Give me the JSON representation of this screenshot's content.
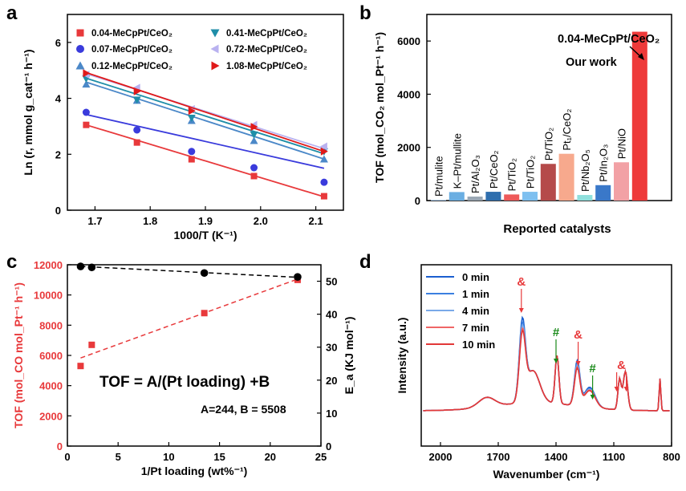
{
  "chart_data": [
    {
      "panel": "a",
      "type": "scatter",
      "xlabel": "1000/T (K⁻¹)",
      "ylabel": "Ln (r, mmol g_cat⁻¹ h⁻¹)",
      "xlim": [
        1.65,
        2.15
      ],
      "ylim": [
        0,
        7
      ],
      "xticks": [
        "1.7",
        "1.8",
        "1.9",
        "2.0",
        "2.1"
      ],
      "yticks": [
        "0",
        "2",
        "4",
        "6"
      ],
      "legend_position": "top",
      "series": [
        {
          "name": "0.04-MeCpPt/CeO₂",
          "marker": "square",
          "color": "#e8393b",
          "x": [
            1.684,
            1.776,
            1.875,
            1.988,
            2.115
          ],
          "y": [
            3.05,
            2.42,
            1.82,
            1.22,
            0.5
          ],
          "fit": [
            3.05,
            0.48
          ]
        },
        {
          "name": "0.07-MeCpPt/CeO₂",
          "marker": "circle",
          "color": "#3a3bdc",
          "x": [
            1.684,
            1.776,
            1.875,
            1.988,
            2.115
          ],
          "y": [
            3.5,
            2.87,
            2.1,
            1.52,
            1.0
          ],
          "fit": [
            3.42,
            1.5
          ]
        },
        {
          "name": "0.12-MeCpPt/CeO₂",
          "marker": "triangle-up",
          "color": "#4b88c8",
          "x": [
            1.684,
            1.776,
            1.875,
            1.988,
            2.115
          ],
          "y": [
            4.5,
            3.92,
            3.2,
            2.48,
            1.82
          ],
          "fit": [
            4.58,
            1.83
          ]
        },
        {
          "name": "0.41-MeCpPt/CeO₂",
          "marker": "triangle-down",
          "color": "#1f8ea8",
          "x": [
            1.684,
            1.776,
            1.875,
            1.988,
            2.115
          ],
          "y": [
            4.7,
            3.95,
            3.3,
            2.7,
            2.1
          ],
          "fit": [
            4.72,
            2.02
          ]
        },
        {
          "name": "0.72-MeCpPt/CeO₂",
          "marker": "triangle-left",
          "color": "#b9b2f0",
          "x": [
            1.684,
            1.776,
            1.875,
            1.988,
            2.115
          ],
          "y": [
            4.85,
            4.38,
            3.62,
            3.05,
            2.28
          ],
          "fit": [
            4.88,
            2.2
          ]
        },
        {
          "name": "1.08-MeCpPt/CeO₂",
          "marker": "triangle-right",
          "color": "#e01a1a",
          "x": [
            1.684,
            1.776,
            1.875,
            1.988,
            2.115
          ],
          "y": [
            4.9,
            4.25,
            3.55,
            2.98,
            2.1
          ],
          "fit": [
            4.92,
            2.1
          ]
        }
      ]
    },
    {
      "panel": "b",
      "type": "bar",
      "xlabel": "Reported catalysts",
      "ylabel": "TOF (mol_CO₂ mol_Pt⁻¹ h⁻¹)",
      "ylim": [
        0,
        7000
      ],
      "yticks": [
        "0",
        "2000",
        "4000",
        "6000"
      ],
      "categories": [
        "Pt/mulite",
        "K–Pt/mullite",
        "Pt/Al₂O₃",
        "Pt/CeO₂",
        "Pt/TiO₂",
        "Pt/TiO₂",
        "Pt/TiO₂",
        "Pt₁/CeO₂",
        "Pt/Nb₂O₅",
        "Pt/In₂O₃",
        "Pt/NiO",
        "0.04-MeCpPt/CeO₂"
      ],
      "values": [
        30,
        320,
        150,
        330,
        230,
        330,
        1380,
        1760,
        210,
        580,
        1440,
        6350
      ],
      "colors": [
        "#a9c6e8",
        "#6aaee2",
        "#9aa7b4",
        "#2f6fae",
        "#ee5a5a",
        "#7ec0f0",
        "#b54a4a",
        "#f7a98d",
        "#8fe0dd",
        "#3a78c9",
        "#f2a1a5",
        "#ee3a3a"
      ],
      "annotation": "0.04-MeCpPt/CeO₂",
      "annotation2": "Our work"
    },
    {
      "panel": "c",
      "type": "scatter",
      "xlabel": "1/Pt loading (wt%⁻¹)",
      "ylabel_left": "TOF (mol_CO mol_Pt⁻¹ h⁻¹)",
      "ylabel_right": "E_a (KJ mol⁻¹)",
      "xlim": [
        0,
        25
      ],
      "ylim_left": [
        0,
        12000
      ],
      "ylim_right": [
        0,
        55
      ],
      "xticks": [
        "0",
        "5",
        "10",
        "15",
        "20",
        "25"
      ],
      "yticks_left": [
        "0",
        "2000",
        "4000",
        "6000",
        "8000",
        "10000",
        "12000"
      ],
      "yticks_right": [
        "0",
        "10",
        "20",
        "30",
        "40",
        "50"
      ],
      "tof_series": {
        "x": [
          1.3,
          2.4,
          13.5,
          22.7
        ],
        "y": [
          5300,
          6700,
          8800,
          11000
        ],
        "fit": [
          [
            1.3,
            5830
          ],
          [
            22.7,
            11050
          ]
        ],
        "color": "#e8393b"
      },
      "ea_series": {
        "x": [
          1.3,
          2.4,
          13.5,
          22.7
        ],
        "y": [
          54.5,
          54.2,
          52.5,
          51.3
        ],
        "fit": [
          [
            1.3,
            54.5
          ],
          [
            22.7,
            51.2
          ]
        ],
        "color": "#000000"
      },
      "equation": "TOF = A/(Pt loading) +B",
      "params": "A=244, B = 5508"
    },
    {
      "panel": "d",
      "type": "line",
      "xlabel": "Wavenumber (cm⁻¹)",
      "ylabel": "Intensity (a.u.)",
      "xlim": [
        2100,
        800
      ],
      "xticks": [
        "2000",
        "1700",
        "1400",
        "1100",
        "800"
      ],
      "legend_position": "top-left",
      "series": [
        {
          "name": "0 min",
          "color": "#1b5fcf"
        },
        {
          "name": "1 min",
          "color": "#3b7fe0"
        },
        {
          "name": "4 min",
          "color": "#7aa9e8"
        },
        {
          "name": "7 min",
          "color": "#ef6666"
        },
        {
          "name": "10 min",
          "color": "#e23838"
        }
      ],
      "markers": [
        {
          "symbol": "&",
          "x": 1580,
          "color": "#e8393b",
          "dir": "down"
        },
        {
          "symbol": "#",
          "x": 1400,
          "color": "#1a8a1a",
          "dir": "down"
        },
        {
          "symbol": "&",
          "x": 1285,
          "color": "#e8393b",
          "dir": "down"
        },
        {
          "symbol": "#",
          "x": 1210,
          "color": "#1a8a1a",
          "dir": "down"
        },
        {
          "symbol": "&",
          "x": 1060,
          "color": "#e8393b",
          "dir": "down"
        }
      ]
    }
  ],
  "panel_labels": [
    "a",
    "b",
    "c",
    "d"
  ]
}
